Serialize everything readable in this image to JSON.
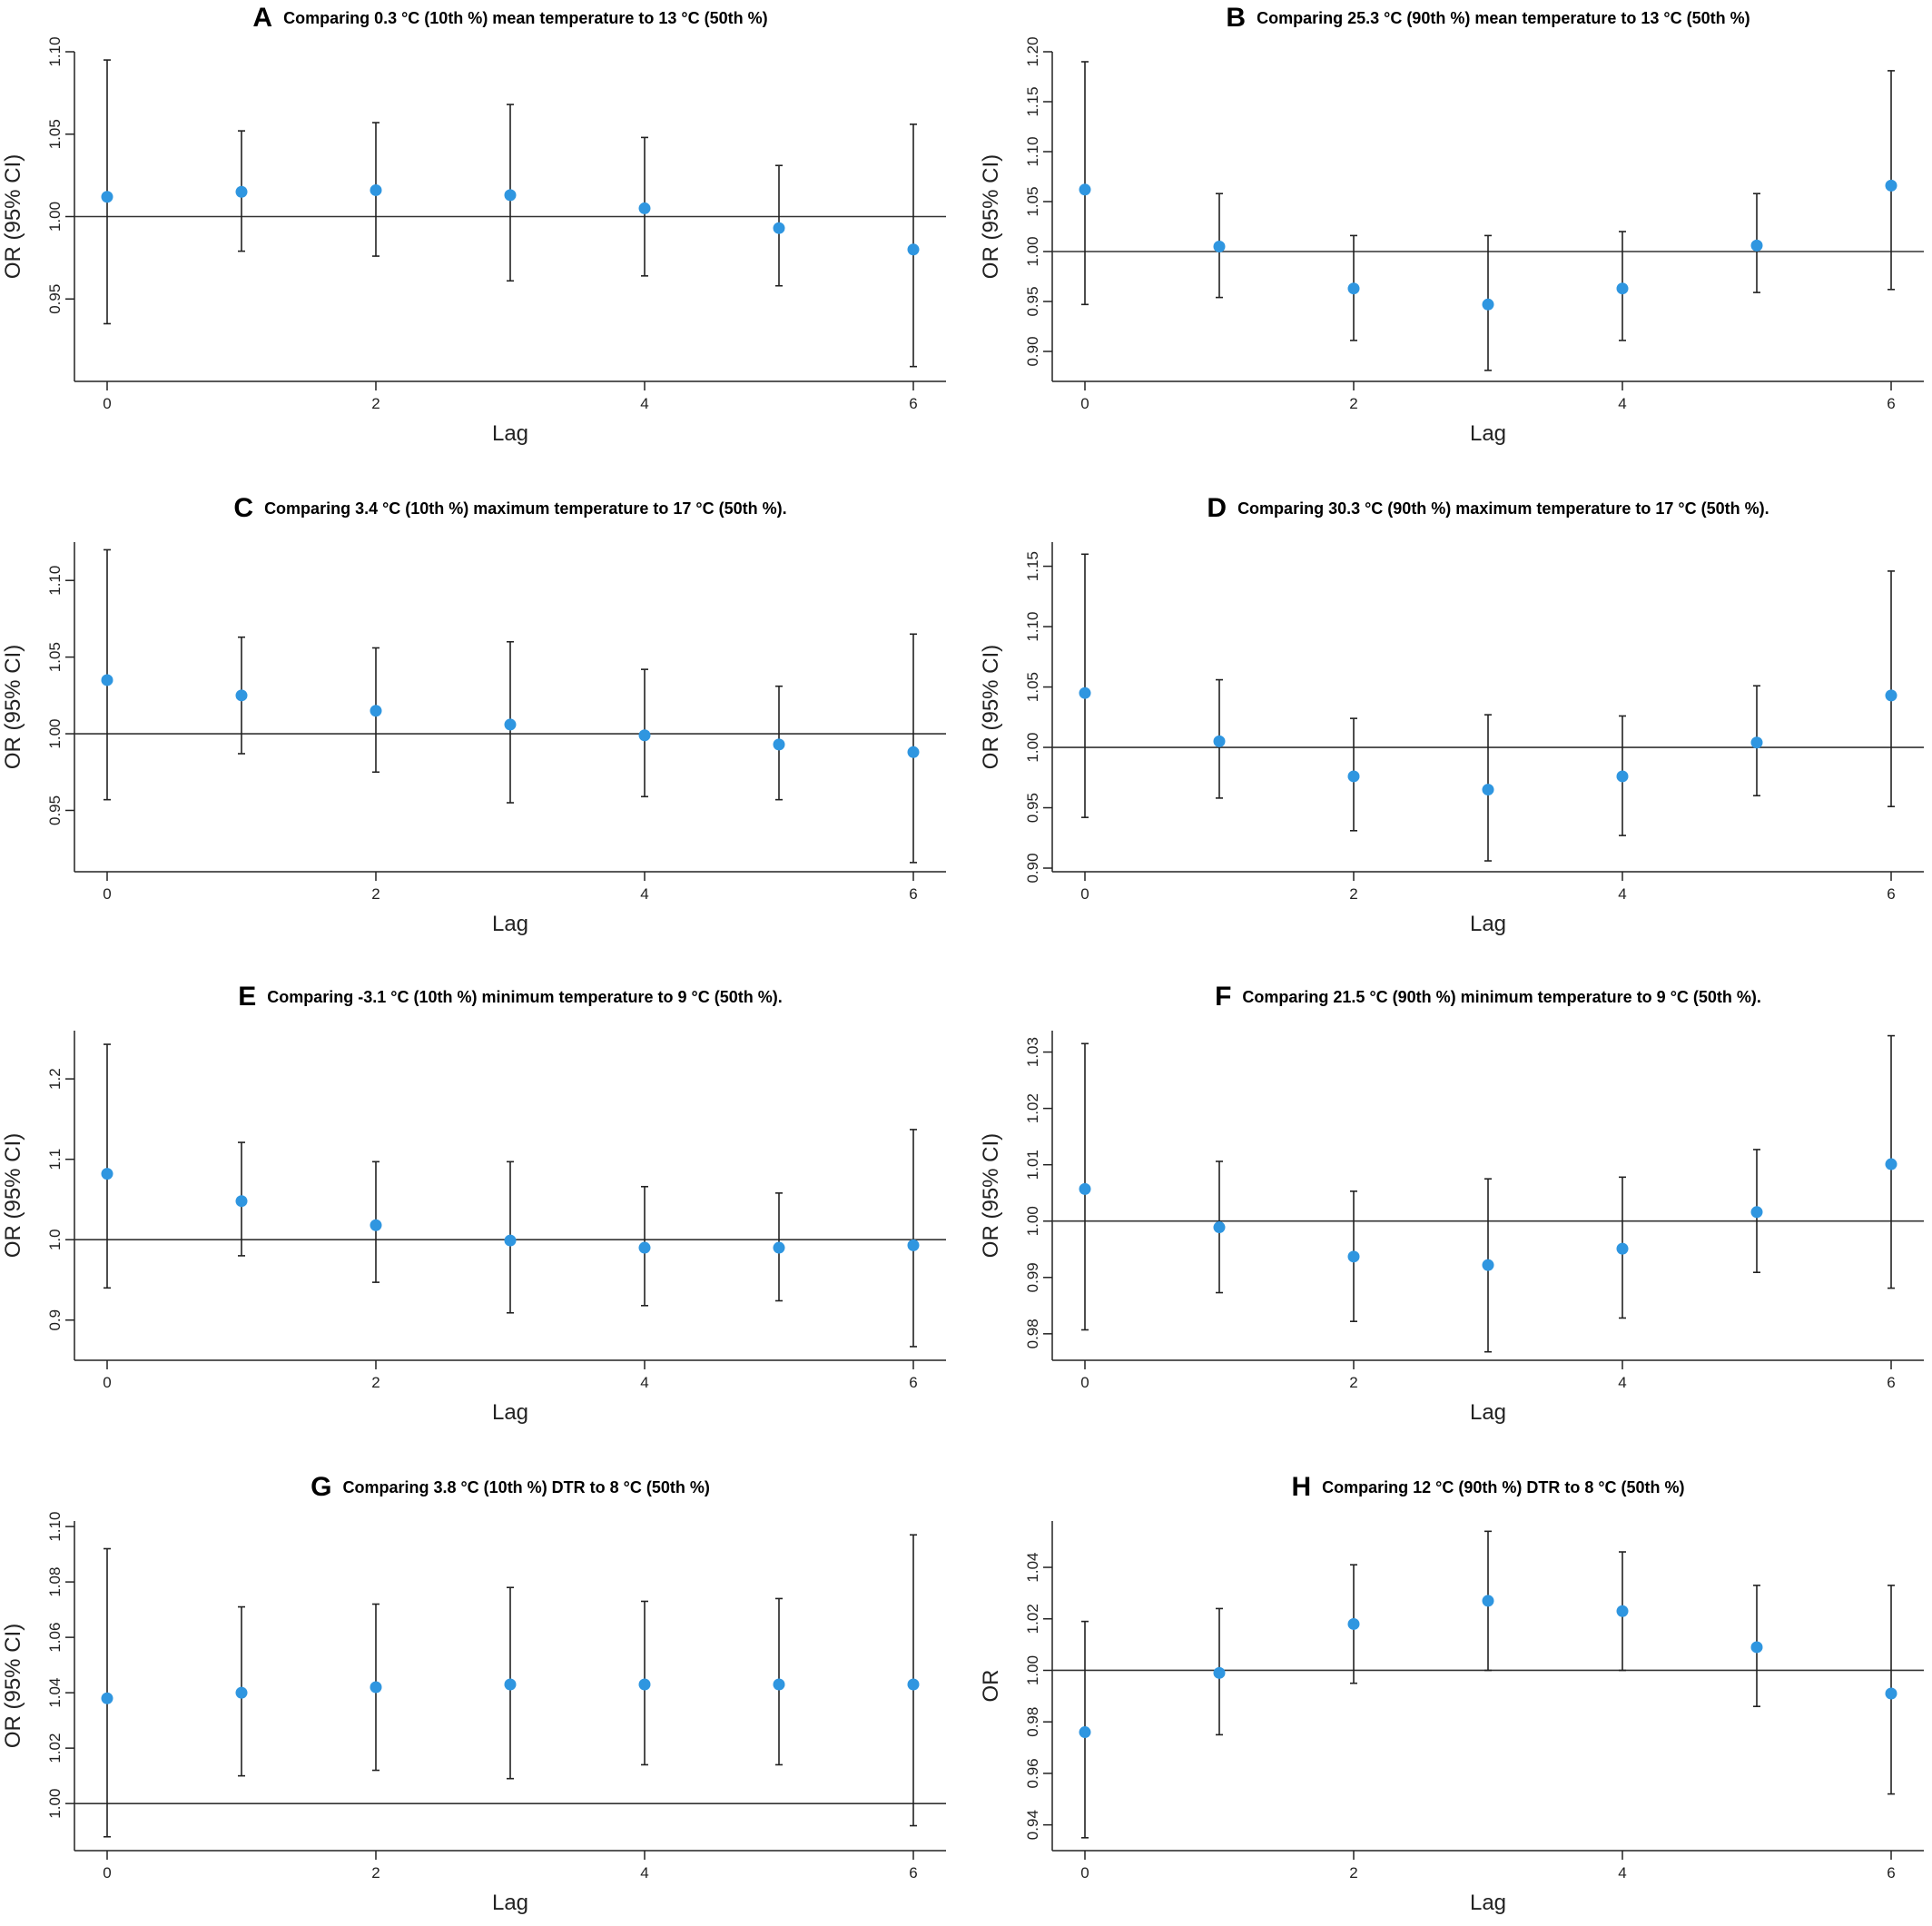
{
  "chart_data": [
    {
      "type": "scatter",
      "panel": "A",
      "title": "Comparing 0.3 °C (10th %) mean temperature to 13 °C (50th %)",
      "xlabel": "Lag",
      "ylabel": "OR (95% CI)",
      "x": [
        0,
        1,
        2,
        3,
        4,
        5,
        6
      ],
      "y": [
        1.012,
        1.015,
        1.016,
        1.013,
        1.005,
        0.993,
        0.98
      ],
      "ci_lower": [
        0.935,
        0.979,
        0.976,
        0.961,
        0.964,
        0.958,
        0.909
      ],
      "ci_upper": [
        1.095,
        1.052,
        1.057,
        1.068,
        1.048,
        1.031,
        1.056
      ],
      "yticks": [
        "0.95",
        "1.00",
        "1.05",
        "1.10"
      ],
      "xticks": [
        "0",
        "2",
        "4",
        "6"
      ],
      "ylim": [
        0.9,
        1.1
      ],
      "reference_line": 1.0,
      "point_color": "#2F96E0"
    },
    {
      "type": "scatter",
      "panel": "B",
      "title": "Comparing 25.3 °C (90th %) mean temperature to 13 °C (50th %)",
      "xlabel": "Lag",
      "ylabel": "OR (95% CI)",
      "x": [
        0,
        1,
        2,
        3,
        4,
        5,
        6
      ],
      "y": [
        1.062,
        1.005,
        0.963,
        0.947,
        0.963,
        1.006,
        1.066
      ],
      "ci_lower": [
        0.947,
        0.954,
        0.911,
        0.881,
        0.911,
        0.959,
        0.962
      ],
      "ci_upper": [
        1.19,
        1.058,
        1.016,
        1.016,
        1.02,
        1.058,
        1.181
      ],
      "yticks": [
        "0.90",
        "0.95",
        "1.00",
        "1.05",
        "1.10",
        "1.15",
        "1.20"
      ],
      "xticks": [
        "0",
        "2",
        "4",
        "6"
      ],
      "ylim": [
        0.87,
        1.2
      ],
      "reference_line": 1.0,
      "point_color": "#2F96E0"
    },
    {
      "type": "scatter",
      "panel": "C",
      "title": "Comparing 3.4 °C (10th %) maximum temperature to 17 °C (50th %).",
      "xlabel": "Lag",
      "ylabel": "OR (95% CI)",
      "x": [
        0,
        1,
        2,
        3,
        4,
        5,
        6
      ],
      "y": [
        1.035,
        1.025,
        1.015,
        1.006,
        0.999,
        0.993,
        0.988
      ],
      "ci_lower": [
        0.957,
        0.987,
        0.975,
        0.955,
        0.959,
        0.957,
        0.916
      ],
      "ci_upper": [
        1.12,
        1.063,
        1.056,
        1.06,
        1.042,
        1.031,
        1.065
      ],
      "yticks": [
        "0.95",
        "1.00",
        "1.05",
        "1.10"
      ],
      "xticks": [
        "0",
        "2",
        "4",
        "6"
      ],
      "ylim": [
        0.91,
        1.125
      ],
      "reference_line": 1.0,
      "point_color": "#2F96E0"
    },
    {
      "type": "scatter",
      "panel": "D",
      "title": "Comparing 30.3 °C (90th %) maximum temperature to 17 °C (50th %).",
      "xlabel": "Lag",
      "ylabel": "OR (95% CI)",
      "x": [
        0,
        1,
        2,
        3,
        4,
        5,
        6
      ],
      "y": [
        1.045,
        1.005,
        0.976,
        0.965,
        0.976,
        1.004,
        1.043
      ],
      "ci_lower": [
        0.942,
        0.958,
        0.931,
        0.906,
        0.927,
        0.96,
        0.951
      ],
      "ci_upper": [
        1.16,
        1.056,
        1.024,
        1.027,
        1.026,
        1.051,
        1.146
      ],
      "yticks": [
        "0.90",
        "0.95",
        "1.00",
        "1.05",
        "1.10",
        "1.15"
      ],
      "xticks": [
        "0",
        "2",
        "4",
        "6"
      ],
      "ylim": [
        0.897,
        1.17
      ],
      "reference_line": 1.0,
      "point_color": "#2F96E0"
    },
    {
      "type": "scatter",
      "panel": "E",
      "title": "Comparing -3.1 °C (10th %) minimum temperature to 9 °C (50th %).",
      "xlabel": "Lag",
      "ylabel": "OR (95% CI)",
      "x": [
        0,
        1,
        2,
        3,
        4,
        5,
        6
      ],
      "y": [
        1.082,
        1.048,
        1.018,
        0.999,
        0.99,
        0.99,
        0.993
      ],
      "ci_lower": [
        0.94,
        0.98,
        0.947,
        0.909,
        0.918,
        0.924,
        0.867
      ],
      "ci_upper": [
        1.243,
        1.121,
        1.097,
        1.097,
        1.066,
        1.058,
        1.137
      ],
      "yticks": [
        "0.9",
        "1.0",
        "1.1",
        "1.2"
      ],
      "xticks": [
        "0",
        "2",
        "4",
        "6"
      ],
      "ylim": [
        0.85,
        1.26
      ],
      "reference_line": 1.0,
      "point_color": "#2F96E0"
    },
    {
      "type": "scatter",
      "panel": "F",
      "title": "Comparing 21.5 °C (90th %) minimum temperature to 9 °C (50th %).",
      "xlabel": "Lag",
      "ylabel": "OR (95% CI)",
      "x": [
        0,
        1,
        2,
        3,
        4,
        5,
        6
      ],
      "y": [
        1.0057,
        0.9989,
        0.9937,
        0.9922,
        0.9951,
        1.0016,
        1.0101
      ],
      "ci_lower": [
        0.9807,
        0.9873,
        0.9822,
        0.9768,
        0.9828,
        0.9909,
        0.9881
      ],
      "ci_upper": [
        1.0315,
        1.0106,
        1.0053,
        1.0075,
        1.0078,
        1.0127,
        1.0329
      ],
      "yticks": [
        "0.98",
        "0.99",
        "1.00",
        "1.01",
        "1.02",
        "1.03"
      ],
      "xticks": [
        "0",
        "2",
        "4",
        "6"
      ],
      "ylim": [
        0.9753,
        1.0338
      ],
      "reference_line": 1.0,
      "point_color": "#2F96E0"
    },
    {
      "type": "scatter",
      "panel": "G",
      "title": "Comparing 3.8 °C (10th %) DTR to 8 °C (50th %)",
      "xlabel": "Lag",
      "ylabel": "OR (95% CI)",
      "x": [
        0,
        1,
        2,
        3,
        4,
        5,
        6
      ],
      "y": [
        1.038,
        1.04,
        1.042,
        1.043,
        1.043,
        1.043,
        1.043
      ],
      "ci_lower": [
        0.988,
        1.01,
        1.012,
        1.009,
        1.014,
        1.014,
        0.992
      ],
      "ci_upper": [
        1.092,
        1.071,
        1.072,
        1.078,
        1.073,
        1.074,
        1.097
      ],
      "yticks": [
        "1.00",
        "1.02",
        "1.04",
        "1.06",
        "1.08",
        "1.10"
      ],
      "xticks": [
        "0",
        "2",
        "4",
        "6"
      ],
      "ylim": [
        0.983,
        1.102
      ],
      "reference_line": 1.0,
      "point_color": "#2F96E0"
    },
    {
      "type": "scatter",
      "panel": "H",
      "title": "Comparing 12 °C (90th %) DTR to 8 °C (50th %)",
      "xlabel": "Lag",
      "ylabel": "OR",
      "x": [
        0,
        1,
        2,
        3,
        4,
        5,
        6
      ],
      "y": [
        0.976,
        0.999,
        1.018,
        1.027,
        1.023,
        1.009,
        0.991
      ],
      "ci_lower": [
        0.935,
        0.975,
        0.995,
        1.0,
        1.0,
        0.986,
        0.952
      ],
      "ci_upper": [
        1.019,
        1.024,
        1.041,
        1.054,
        1.046,
        1.033,
        1.033
      ],
      "yticks": [
        "0.94",
        "0.96",
        "0.98",
        "1.00",
        "1.02",
        "1.04"
      ],
      "xticks": [
        "0",
        "2",
        "4",
        "6"
      ],
      "ylim": [
        0.93,
        1.058
      ],
      "reference_line": 1.0,
      "point_color": "#2F96E0"
    }
  ]
}
